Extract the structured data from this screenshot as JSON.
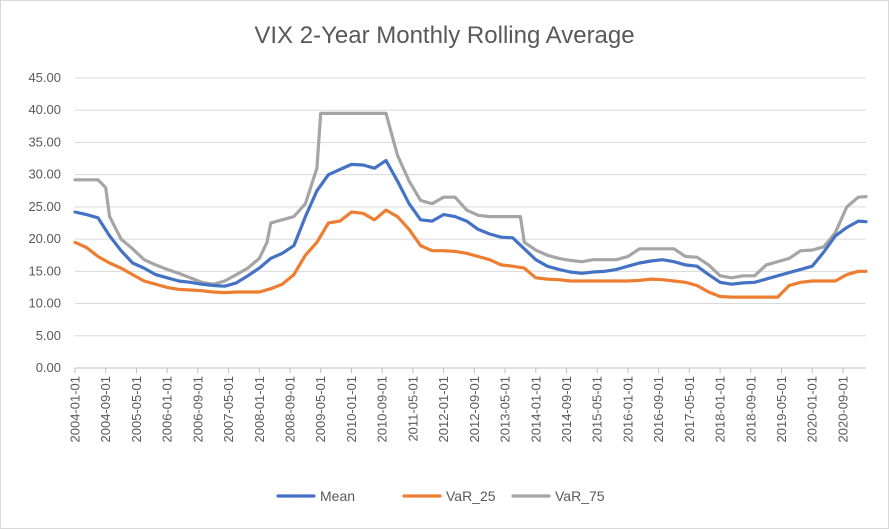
{
  "chart_data": {
    "type": "line",
    "title": "VIX 2-Year Monthly Rolling Average",
    "xlabel": "",
    "ylabel": "",
    "ylim": [
      0,
      45
    ],
    "y_ticks": [
      "0.00",
      "5.00",
      "10.00",
      "15.00",
      "20.00",
      "25.00",
      "30.00",
      "35.00",
      "40.00",
      "45.00"
    ],
    "x_tick_labels": [
      "2004-01-01",
      "2004-09-01",
      "2005-05-01",
      "2006-01-01",
      "2006-09-01",
      "2007-05-01",
      "2008-01-01",
      "2008-09-01",
      "2009-05-01",
      "2010-01-01",
      "2010-09-01",
      "2011-05-01",
      "2012-01-01",
      "2012-09-01",
      "2013-05-01",
      "2014-01-01",
      "2014-09-01",
      "2015-05-01",
      "2016-01-01",
      "2016-09-01",
      "2017-05-01",
      "2018-01-01",
      "2018-09-01",
      "2019-05-01",
      "2020-01-01",
      "2020-09-01"
    ],
    "x_range": [
      "2004-01-01",
      "2021-03-01"
    ],
    "grid": "horizontal",
    "legend_position": "bottom",
    "series": [
      {
        "name": "Mean",
        "color": "#4472c4",
        "points": [
          [
            "2004-01-01",
            24.2
          ],
          [
            "2004-04-01",
            23.8
          ],
          [
            "2004-07-01",
            23.3
          ],
          [
            "2004-10-01",
            20.5
          ],
          [
            "2005-01-01",
            18.2
          ],
          [
            "2005-04-01",
            16.3
          ],
          [
            "2005-07-01",
            15.5
          ],
          [
            "2005-10-01",
            14.5
          ],
          [
            "2006-01-01",
            14.0
          ],
          [
            "2006-04-01",
            13.5
          ],
          [
            "2006-07-01",
            13.3
          ],
          [
            "2006-10-01",
            13.0
          ],
          [
            "2007-01-01",
            12.8
          ],
          [
            "2007-04-01",
            12.7
          ],
          [
            "2007-07-01",
            13.2
          ],
          [
            "2007-10-01",
            14.3
          ],
          [
            "2008-01-01",
            15.5
          ],
          [
            "2008-04-01",
            17.0
          ],
          [
            "2008-07-01",
            17.8
          ],
          [
            "2008-10-01",
            19.0
          ],
          [
            "2009-01-01",
            23.5
          ],
          [
            "2009-04-01",
            27.5
          ],
          [
            "2009-07-01",
            30.0
          ],
          [
            "2009-10-01",
            30.8
          ],
          [
            "2010-01-01",
            31.6
          ],
          [
            "2010-04-01",
            31.5
          ],
          [
            "2010-07-01",
            31.0
          ],
          [
            "2010-10-01",
            32.2
          ],
          [
            "2011-01-01",
            29.0
          ],
          [
            "2011-04-01",
            25.5
          ],
          [
            "2011-07-01",
            23.0
          ],
          [
            "2011-10-01",
            22.8
          ],
          [
            "2012-01-01",
            23.8
          ],
          [
            "2012-04-01",
            23.5
          ],
          [
            "2012-07-01",
            22.8
          ],
          [
            "2012-10-01",
            21.5
          ],
          [
            "2013-01-01",
            20.8
          ],
          [
            "2013-04-01",
            20.3
          ],
          [
            "2013-07-01",
            20.2
          ],
          [
            "2013-10-01",
            18.5
          ],
          [
            "2014-01-01",
            16.8
          ],
          [
            "2014-04-01",
            15.8
          ],
          [
            "2014-07-01",
            15.3
          ],
          [
            "2014-10-01",
            14.9
          ],
          [
            "2015-01-01",
            14.7
          ],
          [
            "2015-04-01",
            14.9
          ],
          [
            "2015-07-01",
            15.0
          ],
          [
            "2015-10-01",
            15.3
          ],
          [
            "2016-01-01",
            15.8
          ],
          [
            "2016-04-01",
            16.3
          ],
          [
            "2016-07-01",
            16.6
          ],
          [
            "2016-10-01",
            16.8
          ],
          [
            "2017-01-01",
            16.5
          ],
          [
            "2017-04-01",
            16.0
          ],
          [
            "2017-07-01",
            15.8
          ],
          [
            "2017-10-01",
            14.5
          ],
          [
            "2018-01-01",
            13.3
          ],
          [
            "2018-04-01",
            13.0
          ],
          [
            "2018-07-01",
            13.2
          ],
          [
            "2018-10-01",
            13.3
          ],
          [
            "2019-01-01",
            13.8
          ],
          [
            "2019-04-01",
            14.3
          ],
          [
            "2019-07-01",
            14.8
          ],
          [
            "2019-10-01",
            15.3
          ],
          [
            "2020-01-01",
            15.8
          ],
          [
            "2020-04-01",
            18.0
          ],
          [
            "2020-07-01",
            20.5
          ],
          [
            "2020-10-01",
            21.8
          ],
          [
            "2021-01-01",
            22.8
          ],
          [
            "2021-03-01",
            22.7
          ]
        ]
      },
      {
        "name": "VaR_25",
        "color": "#ed7d31",
        "points": [
          [
            "2004-01-01",
            19.5
          ],
          [
            "2004-04-01",
            18.7
          ],
          [
            "2004-07-01",
            17.3
          ],
          [
            "2004-10-01",
            16.3
          ],
          [
            "2005-01-01",
            15.5
          ],
          [
            "2005-04-01",
            14.5
          ],
          [
            "2005-07-01",
            13.5
          ],
          [
            "2005-10-01",
            13.0
          ],
          [
            "2006-01-01",
            12.5
          ],
          [
            "2006-04-01",
            12.2
          ],
          [
            "2006-07-01",
            12.1
          ],
          [
            "2006-10-01",
            12.0
          ],
          [
            "2007-01-01",
            11.8
          ],
          [
            "2007-04-01",
            11.7
          ],
          [
            "2007-07-01",
            11.8
          ],
          [
            "2007-10-01",
            11.8
          ],
          [
            "2008-01-01",
            11.8
          ],
          [
            "2008-04-01",
            12.3
          ],
          [
            "2008-07-01",
            13.0
          ],
          [
            "2008-10-01",
            14.5
          ],
          [
            "2009-01-01",
            17.5
          ],
          [
            "2009-04-01",
            19.5
          ],
          [
            "2009-07-01",
            22.5
          ],
          [
            "2009-10-01",
            22.8
          ],
          [
            "2010-01-01",
            24.2
          ],
          [
            "2010-04-01",
            24.0
          ],
          [
            "2010-07-01",
            23.0
          ],
          [
            "2010-10-01",
            24.5
          ],
          [
            "2011-01-01",
            23.5
          ],
          [
            "2011-04-01",
            21.5
          ],
          [
            "2011-07-01",
            19.0
          ],
          [
            "2011-10-01",
            18.2
          ],
          [
            "2012-01-01",
            18.2
          ],
          [
            "2012-04-01",
            18.1
          ],
          [
            "2012-07-01",
            17.8
          ],
          [
            "2012-10-01",
            17.3
          ],
          [
            "2013-01-01",
            16.8
          ],
          [
            "2013-04-01",
            16.0
          ],
          [
            "2013-07-01",
            15.8
          ],
          [
            "2013-10-01",
            15.5
          ],
          [
            "2014-01-01",
            14.0
          ],
          [
            "2014-04-01",
            13.8
          ],
          [
            "2014-07-01",
            13.7
          ],
          [
            "2014-10-01",
            13.5
          ],
          [
            "2015-01-01",
            13.5
          ],
          [
            "2015-04-01",
            13.5
          ],
          [
            "2015-07-01",
            13.5
          ],
          [
            "2015-10-01",
            13.5
          ],
          [
            "2016-01-01",
            13.5
          ],
          [
            "2016-04-01",
            13.6
          ],
          [
            "2016-07-01",
            13.8
          ],
          [
            "2016-10-01",
            13.7
          ],
          [
            "2017-01-01",
            13.5
          ],
          [
            "2017-04-01",
            13.3
          ],
          [
            "2017-07-01",
            12.8
          ],
          [
            "2017-10-01",
            11.8
          ],
          [
            "2018-01-01",
            11.1
          ],
          [
            "2018-04-01",
            11.0
          ],
          [
            "2018-07-01",
            11.0
          ],
          [
            "2018-10-01",
            11.0
          ],
          [
            "2019-01-01",
            11.0
          ],
          [
            "2019-04-01",
            11.0
          ],
          [
            "2019-07-01",
            12.8
          ],
          [
            "2019-10-01",
            13.3
          ],
          [
            "2020-01-01",
            13.5
          ],
          [
            "2020-04-01",
            13.5
          ],
          [
            "2020-07-01",
            13.5
          ],
          [
            "2020-10-01",
            14.5
          ],
          [
            "2021-01-01",
            15.0
          ],
          [
            "2021-03-01",
            15.0
          ]
        ]
      },
      {
        "name": "VaR_75",
        "color": "#a5a5a5",
        "points": [
          [
            "2004-01-01",
            29.2
          ],
          [
            "2004-04-01",
            29.2
          ],
          [
            "2004-07-01",
            29.2
          ],
          [
            "2004-09-01",
            28.0
          ],
          [
            "2004-10-01",
            23.5
          ],
          [
            "2005-01-01",
            20.0
          ],
          [
            "2005-04-01",
            18.5
          ],
          [
            "2005-07-01",
            16.8
          ],
          [
            "2005-10-01",
            16.0
          ],
          [
            "2006-01-01",
            15.3
          ],
          [
            "2006-04-01",
            14.7
          ],
          [
            "2006-07-01",
            14.0
          ],
          [
            "2006-10-01",
            13.3
          ],
          [
            "2007-01-01",
            13.0
          ],
          [
            "2007-04-01",
            13.5
          ],
          [
            "2007-07-01",
            14.5
          ],
          [
            "2007-10-01",
            15.5
          ],
          [
            "2008-01-01",
            17.0
          ],
          [
            "2008-03-01",
            19.5
          ],
          [
            "2008-04-01",
            22.5
          ],
          [
            "2008-07-01",
            23.0
          ],
          [
            "2008-10-01",
            23.5
          ],
          [
            "2009-01-01",
            25.5
          ],
          [
            "2009-04-01",
            31.0
          ],
          [
            "2009-05-01",
            39.5
          ],
          [
            "2010-01-01",
            39.5
          ],
          [
            "2010-06-01",
            39.5
          ],
          [
            "2010-10-01",
            39.5
          ],
          [
            "2011-01-01",
            33.0
          ],
          [
            "2011-04-01",
            29.0
          ],
          [
            "2011-07-01",
            26.0
          ],
          [
            "2011-10-01",
            25.5
          ],
          [
            "2012-01-01",
            26.5
          ],
          [
            "2012-04-01",
            26.5
          ],
          [
            "2012-07-01",
            24.5
          ],
          [
            "2012-10-01",
            23.7
          ],
          [
            "2013-01-01",
            23.5
          ],
          [
            "2013-04-01",
            23.5
          ],
          [
            "2013-07-01",
            23.5
          ],
          [
            "2013-09-01",
            23.5
          ],
          [
            "2013-10-01",
            19.5
          ],
          [
            "2014-01-01",
            18.3
          ],
          [
            "2014-04-01",
            17.5
          ],
          [
            "2014-07-01",
            17.0
          ],
          [
            "2014-10-01",
            16.7
          ],
          [
            "2015-01-01",
            16.5
          ],
          [
            "2015-04-01",
            16.8
          ],
          [
            "2015-07-01",
            16.8
          ],
          [
            "2015-10-01",
            16.8
          ],
          [
            "2016-01-01",
            17.3
          ],
          [
            "2016-04-01",
            18.5
          ],
          [
            "2016-07-01",
            18.5
          ],
          [
            "2016-10-01",
            18.5
          ],
          [
            "2017-01-01",
            18.5
          ],
          [
            "2017-04-01",
            17.3
          ],
          [
            "2017-07-01",
            17.2
          ],
          [
            "2017-10-01",
            16.0
          ],
          [
            "2018-01-01",
            14.3
          ],
          [
            "2018-04-01",
            14.0
          ],
          [
            "2018-07-01",
            14.3
          ],
          [
            "2018-10-01",
            14.3
          ],
          [
            "2019-01-01",
            16.0
          ],
          [
            "2019-04-01",
            16.5
          ],
          [
            "2019-07-01",
            17.0
          ],
          [
            "2019-10-01",
            18.2
          ],
          [
            "2020-01-01",
            18.3
          ],
          [
            "2020-04-01",
            18.8
          ],
          [
            "2020-07-01",
            21.0
          ],
          [
            "2020-10-01",
            25.0
          ],
          [
            "2021-01-01",
            26.5
          ],
          [
            "2021-03-01",
            26.6
          ]
        ]
      }
    ]
  }
}
